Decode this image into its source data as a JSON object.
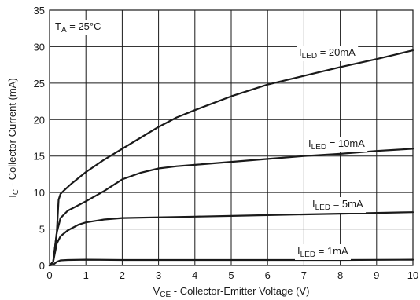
{
  "chart_data": {
    "type": "line",
    "condition": {
      "main": "T",
      "sub": "A",
      "rest": " = 25°C"
    },
    "xlabel": {
      "main": "V",
      "sub": "CE",
      "rest": " - Collector-Emitter Voltage (V)"
    },
    "ylabel": {
      "main": "I",
      "sub": "C",
      "rest": " - Collector Current (mA)"
    },
    "xlim": [
      0,
      10
    ],
    "ylim": [
      0,
      35
    ],
    "xticks": [
      0,
      1,
      2,
      3,
      4,
      5,
      6,
      7,
      8,
      9,
      10
    ],
    "yticks": [
      0,
      5,
      10,
      15,
      20,
      25,
      30,
      35
    ],
    "grid": true,
    "series": [
      {
        "name": "ILED = 20mA",
        "label": {
          "main": "I",
          "sub": "LED",
          "rest": " = 20mA"
        },
        "x": [
          0.0,
          0.1,
          0.2,
          0.25,
          0.3,
          0.4,
          0.6,
          1.0,
          1.5,
          2.0,
          2.5,
          3.0,
          3.5,
          4.0,
          5.0,
          6.0,
          7.0,
          8.0,
          9.0,
          10.0
        ],
        "y": [
          0,
          0.5,
          4.5,
          9.0,
          9.8,
          10.3,
          11.2,
          12.8,
          14.5,
          16.0,
          17.5,
          19.0,
          20.3,
          21.3,
          23.2,
          24.8,
          26.0,
          27.2,
          28.3,
          29.5
        ]
      },
      {
        "name": "ILED = 10mA",
        "label": {
          "main": "I",
          "sub": "LED",
          "rest": " = 10mA"
        },
        "x": [
          0.0,
          0.1,
          0.2,
          0.3,
          0.5,
          1.0,
          1.5,
          2.0,
          2.5,
          3.0,
          3.5,
          4.0,
          5.0,
          6.0,
          7.0,
          8.0,
          9.0,
          10.0
        ],
        "y": [
          0,
          0.5,
          4.5,
          6.5,
          7.5,
          8.8,
          10.2,
          11.8,
          12.7,
          13.3,
          13.6,
          13.8,
          14.2,
          14.6,
          15.0,
          15.3,
          15.7,
          16.0
        ]
      },
      {
        "name": "ILED = 5mA",
        "label": {
          "main": "I",
          "sub": "LED",
          "rest": " = 5mA"
        },
        "x": [
          0.0,
          0.1,
          0.2,
          0.3,
          0.5,
          0.8,
          1.0,
          1.5,
          2.0,
          3.0,
          4.0,
          5.0,
          6.0,
          7.0,
          8.0,
          9.0,
          10.0
        ],
        "y": [
          0,
          0.5,
          3.0,
          4.0,
          4.8,
          5.6,
          5.9,
          6.3,
          6.5,
          6.6,
          6.7,
          6.8,
          6.9,
          7.0,
          7.1,
          7.2,
          7.3
        ]
      },
      {
        "name": "ILED = 1mA",
        "label": {
          "main": "I",
          "sub": "LED",
          "rest": " = 1mA"
        },
        "x": [
          0.0,
          0.1,
          0.2,
          0.3,
          0.5,
          1.0,
          2.0,
          4.0,
          6.0,
          8.0,
          10.0
        ],
        "y": [
          0,
          0.1,
          0.5,
          0.7,
          0.75,
          0.8,
          0.75,
          0.75,
          0.75,
          0.75,
          0.8
        ]
      }
    ]
  }
}
